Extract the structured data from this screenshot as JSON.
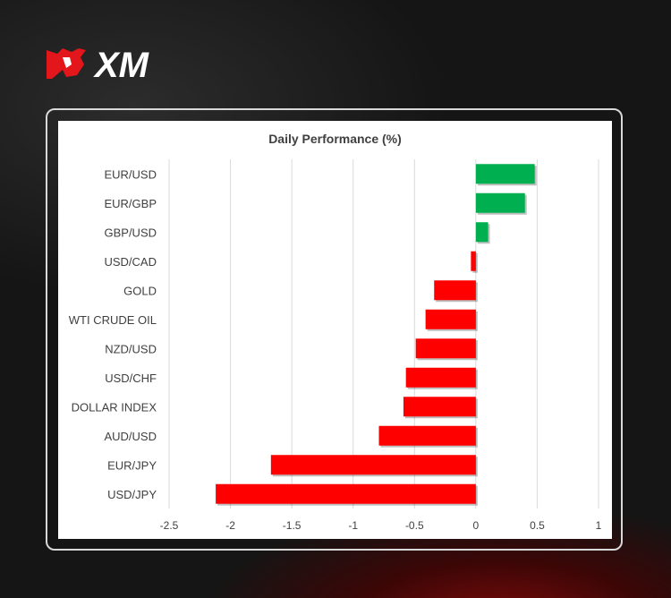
{
  "brand": {
    "logo_text": "XM",
    "logo_color": "#e3161b"
  },
  "chart_data": {
    "type": "bar",
    "orientation": "horizontal",
    "title": "Daily Performance (%)",
    "categories": [
      "EUR/USD",
      "EUR/GBP",
      "GBP/USD",
      "USD/CAD",
      "GOLD",
      "WTI CRUDE OIL",
      "NZD/USD",
      "USD/CHF",
      "DOLLAR INDEX",
      "AUD/USD",
      "EUR/JPY",
      "USD/JPY"
    ],
    "values": [
      0.48,
      0.4,
      0.1,
      -0.04,
      -0.34,
      -0.41,
      -0.49,
      -0.57,
      -0.59,
      -0.79,
      -1.67,
      -2.12
    ],
    "xlim": [
      -2.5,
      1
    ],
    "xticks": [
      "-2.5",
      "-2",
      "-1.5",
      "-1",
      "-0.5",
      "0",
      "0.5",
      "1"
    ],
    "grid": true,
    "colors": {
      "positive": "#00b050",
      "negative": "#ff0000"
    }
  }
}
